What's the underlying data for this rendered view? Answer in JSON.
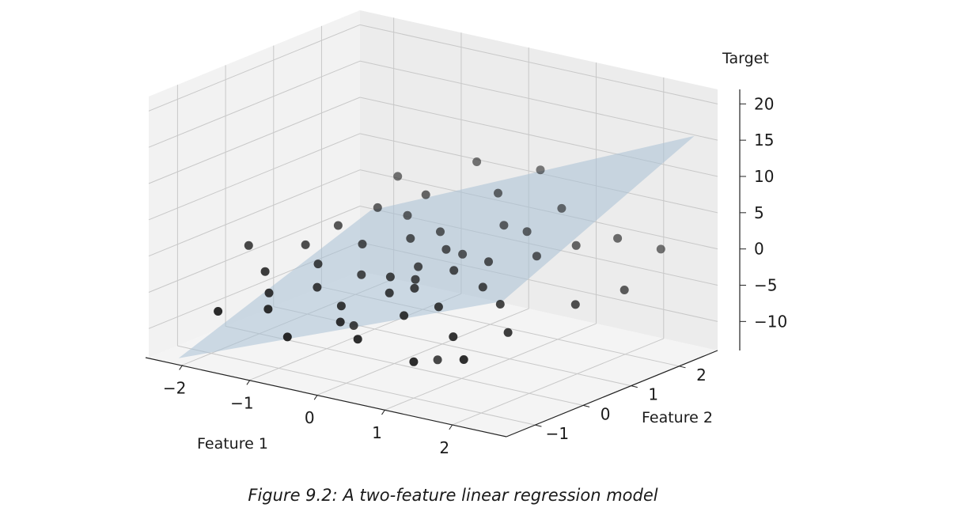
{
  "caption": "Figure 9.2: A two-feature linear regression model",
  "chart_data": {
    "type": "scatter",
    "subtype": "3d-scatter-with-regression-plane",
    "xlabel": "Feature 1",
    "ylabel": "Feature 2",
    "zlabel": "Target",
    "xticks": [
      "−2",
      "−1",
      "0",
      "1",
      "2"
    ],
    "yticks": [
      "−1",
      "0",
      "1",
      "2"
    ],
    "zticks": [
      "20",
      "15",
      "10",
      "5",
      "0",
      "−5",
      "−10"
    ],
    "xlim": [
      -2.5,
      2.8
    ],
    "ylim": [
      -1.6,
      2.8
    ],
    "zlim": [
      -14,
      22
    ],
    "grid": true,
    "colors": {
      "points": "#1c1c1c",
      "plane": "#a9c1d6",
      "pane": "#f2f2f2",
      "grid": "#c8c8c8"
    },
    "plane": {
      "label": "regression plane"
    },
    "points": [
      {
        "x": -2.3,
        "y": 0.2,
        "z": -3
      },
      {
        "x": -1.9,
        "y": -1.0,
        "z": -8
      },
      {
        "x": -1.7,
        "y": -0.3,
        "z": -4
      },
      {
        "x": -1.6,
        "y": 0.4,
        "z": -2
      },
      {
        "x": -1.5,
        "y": -0.5,
        "z": -6
      },
      {
        "x": -1.4,
        "y": 0.8,
        "z": 0
      },
      {
        "x": -1.3,
        "y": -0.8,
        "z": -7
      },
      {
        "x": -1.2,
        "y": 0.1,
        "z": -3
      },
      {
        "x": -1.1,
        "y": 1.2,
        "z": 2
      },
      {
        "x": -1.0,
        "y": -0.2,
        "z": -5
      },
      {
        "x": -0.9,
        "y": 0.6,
        "z": -1
      },
      {
        "x": -0.8,
        "y": -1.1,
        "z": -9
      },
      {
        "x": -0.7,
        "y": 0.3,
        "z": -4
      },
      {
        "x": -0.6,
        "y": 1.5,
        "z": 4
      },
      {
        "x": -0.5,
        "y": -0.4,
        "z": -6
      },
      {
        "x": -0.4,
        "y": 0.9,
        "z": 0
      },
      {
        "x": -0.3,
        "y": -0.7,
        "z": -7
      },
      {
        "x": -0.2,
        "y": 0.2,
        "z": -3
      },
      {
        "x": -0.1,
        "y": 1.1,
        "z": 1
      },
      {
        "x": 0.0,
        "y": -0.1,
        "z": -4
      },
      {
        "x": 0.0,
        "y": 0.5,
        "z": -2
      },
      {
        "x": 0.1,
        "y": -0.9,
        "z": -8
      },
      {
        "x": 0.2,
        "y": 0.8,
        "z": 0
      },
      {
        "x": 0.3,
        "y": 0.0,
        "z": -3
      },
      {
        "x": 0.4,
        "y": 1.6,
        "z": 6
      },
      {
        "x": 0.5,
        "y": -0.5,
        "z": -5
      },
      {
        "x": 0.6,
        "y": 0.4,
        "z": -1
      },
      {
        "x": 0.7,
        "y": 1.3,
        "z": 3
      },
      {
        "x": 0.8,
        "y": -0.2,
        "z": -4
      },
      {
        "x": 0.9,
        "y": 0.7,
        "z": 0
      },
      {
        "x": 1.0,
        "y": -1.0,
        "z": -9
      },
      {
        "x": 1.1,
        "y": 0.3,
        "z": -2
      },
      {
        "x": 1.2,
        "y": 1.8,
        "z": 5
      },
      {
        "x": 1.3,
        "y": -0.6,
        "z": -6
      },
      {
        "x": 1.4,
        "y": 1.0,
        "z": 1
      },
      {
        "x": 1.5,
        "y": 0.1,
        "z": -3
      },
      {
        "x": 1.7,
        "y": 1.4,
        "z": 2
      },
      {
        "x": 1.9,
        "y": -0.3,
        "z": -5
      },
      {
        "x": 2.1,
        "y": 1.7,
        "z": 3
      },
      {
        "x": 2.4,
        "y": 0.4,
        "z": -2
      },
      {
        "x": 2.6,
        "y": 1.9,
        "z": 2
      },
      {
        "x": 2.7,
        "y": 1.0,
        "z": -1
      },
      {
        "x": -0.6,
        "y": 0.0,
        "z": -10
      },
      {
        "x": 0.5,
        "y": 0.2,
        "z": -13
      },
      {
        "x": 1.6,
        "y": -0.8,
        "z": -8
      },
      {
        "x": -0.2,
        "y": 2.0,
        "z": 8
      },
      {
        "x": 0.6,
        "y": 2.2,
        "z": 8
      },
      {
        "x": -1.3,
        "y": 1.9,
        "z": 4
      },
      {
        "x": 0.3,
        "y": 1.0,
        "z": -1
      },
      {
        "x": -0.8,
        "y": 1.4,
        "z": 1
      },
      {
        "x": 0.9,
        "y": 1.5,
        "z": 2
      },
      {
        "x": 0.1,
        "y": 0.3,
        "z": -3
      }
    ]
  }
}
